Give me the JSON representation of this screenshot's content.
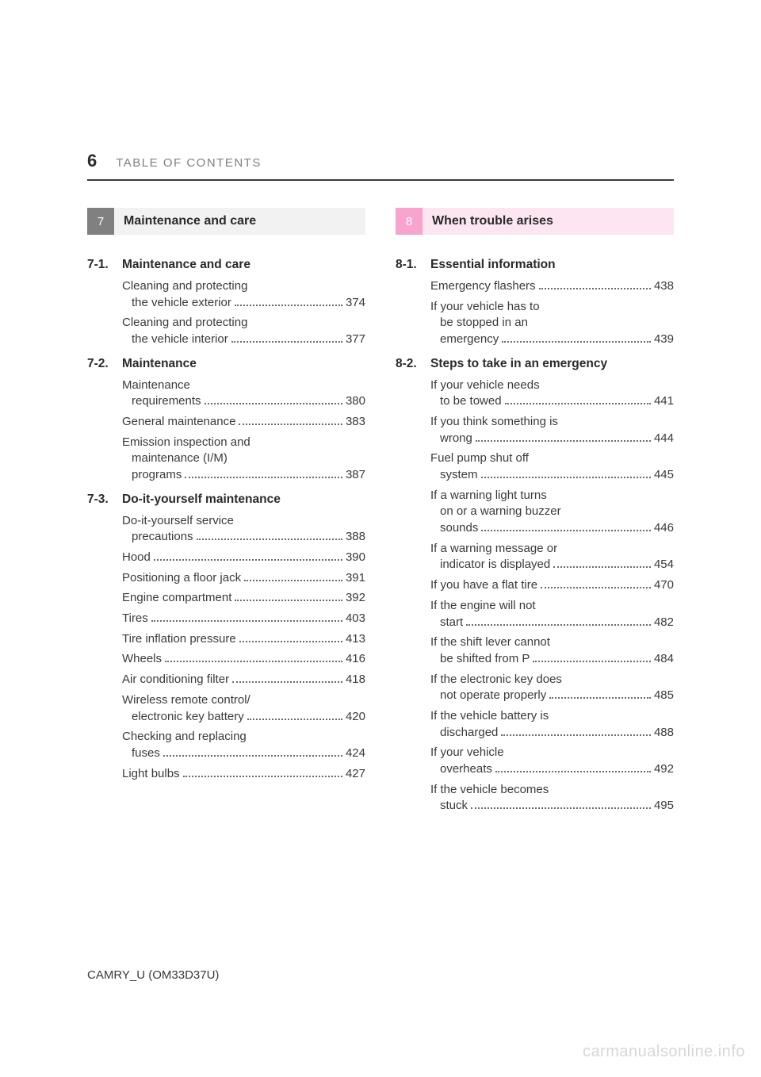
{
  "page_number": "6",
  "header": "TABLE OF CONTENTS",
  "footer": "CAMRY_U (OM33D37U)",
  "watermark": "carmanualsonline.info",
  "left": {
    "badge": "7",
    "title": "Maintenance and care",
    "sections": [
      {
        "num": "7-1.",
        "title": "Maintenance and care",
        "entries": [
          {
            "lines": [
              "Cleaning and protecting",
              "the vehicle exterior"
            ],
            "page": "374"
          },
          {
            "lines": [
              "Cleaning and protecting",
              "the vehicle interior"
            ],
            "page": "377"
          }
        ]
      },
      {
        "num": "7-2.",
        "title": "Maintenance",
        "entries": [
          {
            "lines": [
              "Maintenance",
              "requirements"
            ],
            "page": "380"
          },
          {
            "lines": [
              "General maintenance"
            ],
            "page": "383"
          },
          {
            "lines": [
              "Emission inspection and",
              "maintenance (I/M)",
              "programs"
            ],
            "page": "387"
          }
        ]
      },
      {
        "num": "7-3.",
        "title": "Do-it-yourself maintenance",
        "entries": [
          {
            "lines": [
              "Do-it-yourself service",
              "precautions"
            ],
            "page": "388"
          },
          {
            "lines": [
              "Hood"
            ],
            "page": "390"
          },
          {
            "lines": [
              "Positioning a floor jack"
            ],
            "page": "391"
          },
          {
            "lines": [
              "Engine compartment"
            ],
            "page": "392"
          },
          {
            "lines": [
              "Tires"
            ],
            "page": "403"
          },
          {
            "lines": [
              "Tire inflation pressure"
            ],
            "page": "413"
          },
          {
            "lines": [
              "Wheels"
            ],
            "page": "416"
          },
          {
            "lines": [
              "Air conditioning filter"
            ],
            "page": "418"
          },
          {
            "lines": [
              "Wireless remote control/",
              "electronic key battery"
            ],
            "page": "420"
          },
          {
            "lines": [
              "Checking and replacing",
              "fuses"
            ],
            "page": "424"
          },
          {
            "lines": [
              "Light bulbs"
            ],
            "page": "427"
          }
        ]
      }
    ]
  },
  "right": {
    "badge": "8",
    "title": "When trouble arises",
    "sections": [
      {
        "num": "8-1.",
        "title": "Essential information",
        "entries": [
          {
            "lines": [
              "Emergency flashers"
            ],
            "page": "438"
          },
          {
            "lines": [
              "If your vehicle has to",
              "be stopped in an",
              "emergency"
            ],
            "page": "439"
          }
        ]
      },
      {
        "num": "8-2.",
        "title": "Steps to take in an emergency",
        "entries": [
          {
            "lines": [
              "If your vehicle needs",
              "to be towed"
            ],
            "page": "441"
          },
          {
            "lines": [
              "If you think something is",
              "wrong"
            ],
            "page": "444"
          },
          {
            "lines": [
              "Fuel pump shut off",
              "system"
            ],
            "page": "445"
          },
          {
            "lines": [
              "If a warning light turns",
              "on or a warning buzzer",
              "sounds"
            ],
            "page": "446"
          },
          {
            "lines": [
              "If a warning message or",
              "indicator is displayed"
            ],
            "page": "454"
          },
          {
            "lines": [
              "If you have a flat tire"
            ],
            "page": "470"
          },
          {
            "lines": [
              "If the engine will not",
              "start"
            ],
            "page": "482"
          },
          {
            "lines": [
              "If the shift lever cannot",
              "be shifted from P"
            ],
            "page": "484"
          },
          {
            "lines": [
              "If the electronic key does",
              "not operate properly"
            ],
            "page": "485"
          },
          {
            "lines": [
              "If the vehicle battery is",
              "discharged"
            ],
            "page": "488"
          },
          {
            "lines": [
              "If your vehicle",
              "overheats"
            ],
            "page": "492"
          },
          {
            "lines": [
              "If the vehicle becomes",
              "stuck"
            ],
            "page": "495"
          }
        ]
      }
    ]
  }
}
